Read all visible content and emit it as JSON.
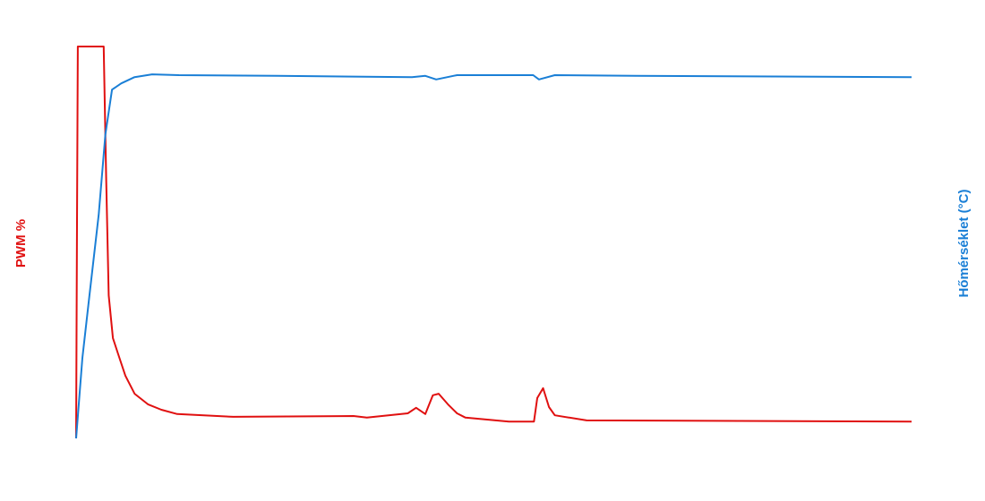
{
  "chart_data": {
    "type": "line",
    "ylabel": "PWM %",
    "y2label": "Hőmérséklet (°C)",
    "xlim": [
      0,
      100
    ],
    "ylim": [
      0,
      100
    ],
    "y2lim": [
      0,
      100
    ],
    "series": [
      {
        "name": "PWM",
        "color": "#e01010",
        "x": [
          0,
          0.1,
          0.2,
          3.3,
          3.6,
          3.9,
          4.4,
          5.0,
          5.9,
          7.0,
          8.6,
          10.2,
          12.1,
          18.8,
          33.2,
          34.8,
          39.7,
          40.7,
          41.8,
          42.7,
          43.4,
          44.5,
          45.6,
          46.6,
          51.8,
          54.8,
          55.2,
          55.9,
          56.6,
          57.3,
          61.1,
          100
        ],
        "values": [
          0,
          50,
          100,
          100,
          66,
          36.5,
          25.6,
          21.7,
          16,
          11.4,
          8.7,
          7.3,
          6.2,
          5.5,
          5.7,
          5.3,
          6.4,
          7.8,
          6.2,
          11,
          11.4,
          8.7,
          6.4,
          5.3,
          4.3,
          4.3,
          10.3,
          12.8,
          8,
          5.9,
          4.6,
          4.3
        ]
      },
      {
        "name": "Hőmérséklet",
        "color": "#1a7fd6",
        "axis": "y2",
        "x": [
          0,
          0.75,
          1.6,
          2.7,
          3.5,
          4.3,
          5.4,
          7.0,
          9.1,
          12.3,
          24.1,
          40.2,
          41.8,
          43.1,
          45.6,
          54.7,
          55.4,
          57.3,
          67.0,
          100
        ],
        "values": [
          0,
          20.5,
          36.5,
          57,
          77.6,
          89,
          90.6,
          92.2,
          92.9,
          92.7,
          92.5,
          92.2,
          92.5,
          91.6,
          92.7,
          92.7,
          91.6,
          92.7,
          92.5,
          92.2
        ]
      }
    ]
  }
}
